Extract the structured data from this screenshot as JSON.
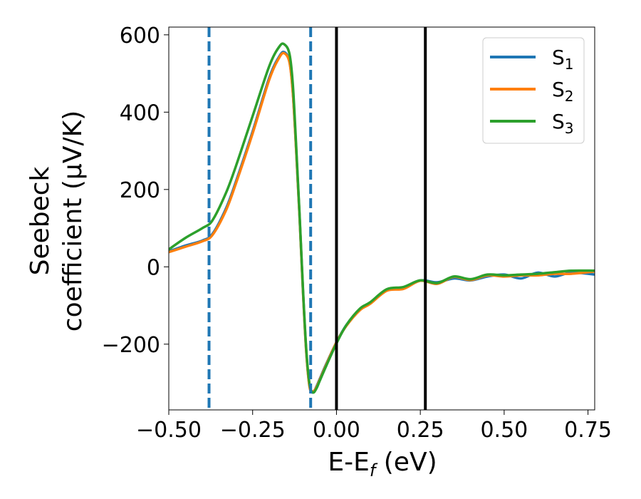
{
  "chart_data": {
    "type": "line",
    "xlabel": "E-E$_f$ (eV)",
    "xlabel_parts": [
      "E-E",
      "f",
      " (eV)"
    ],
    "ylabel_line1": "Seebeck",
    "ylabel_line2": "coefficient  (μV/K)",
    "xlim": [
      -0.5,
      0.77
    ],
    "ylim": [
      -370,
      620
    ],
    "x_ticks": [
      -0.5,
      -0.25,
      0.0,
      0.25,
      0.5,
      0.75
    ],
    "x_tick_labels": [
      "−0.50",
      "−0.25",
      "0.00",
      "0.25",
      "0.50",
      "0.75"
    ],
    "y_ticks": [
      -200,
      0,
      200,
      400,
      600
    ],
    "y_tick_labels": [
      "−200",
      "0",
      "200",
      "400",
      "600"
    ],
    "legend_position": "top-right",
    "grid": false,
    "vertical_lines": [
      {
        "x": -0.38,
        "style": "dashed",
        "color": "#1f77b4"
      },
      {
        "x": -0.077,
        "style": "dashed",
        "color": "#1f77b4"
      },
      {
        "x": 0.0,
        "style": "solid",
        "color": "#000000"
      },
      {
        "x": 0.265,
        "style": "solid",
        "color": "#000000"
      }
    ],
    "series": [
      {
        "name": "S1",
        "label_base": "S",
        "label_sub": "1",
        "color": "#1f77b4",
        "x": [
          -0.5,
          -0.45,
          -0.4,
          -0.37,
          -0.33,
          -0.3,
          -0.25,
          -0.2,
          -0.17,
          -0.155,
          -0.14,
          -0.13,
          -0.12,
          -0.11,
          -0.1,
          -0.09,
          -0.08,
          -0.07,
          -0.06,
          -0.05,
          -0.03,
          0.0,
          0.03,
          0.07,
          0.1,
          0.15,
          0.2,
          0.25,
          0.3,
          0.35,
          0.4,
          0.45,
          0.5,
          0.55,
          0.6,
          0.65,
          0.7,
          0.77
        ],
        "y": [
          40,
          55,
          68,
          85,
          150,
          220,
          350,
          490,
          545,
          555,
          530,
          450,
          300,
          130,
          -60,
          -220,
          -310,
          -325,
          -310,
          -290,
          -250,
          -195,
          -150,
          -110,
          -95,
          -60,
          -55,
          -35,
          -40,
          -30,
          -35,
          -25,
          -20,
          -30,
          -15,
          -25,
          -15,
          -20
        ]
      },
      {
        "name": "S2",
        "label_base": "S",
        "label_sub": "2",
        "color": "#ff7f0e",
        "x": [
          -0.5,
          -0.45,
          -0.4,
          -0.37,
          -0.33,
          -0.3,
          -0.25,
          -0.2,
          -0.17,
          -0.155,
          -0.14,
          -0.13,
          -0.12,
          -0.11,
          -0.1,
          -0.09,
          -0.08,
          -0.07,
          -0.06,
          -0.05,
          -0.03,
          0.0,
          0.03,
          0.07,
          0.1,
          0.15,
          0.2,
          0.25,
          0.3,
          0.35,
          0.4,
          0.45,
          0.5,
          0.55,
          0.6,
          0.65,
          0.7,
          0.77
        ],
        "y": [
          38,
          52,
          66,
          82,
          145,
          215,
          345,
          485,
          542,
          552,
          528,
          448,
          298,
          128,
          -62,
          -222,
          -312,
          -322,
          -312,
          -292,
          -252,
          -195,
          -152,
          -112,
          -96,
          -62,
          -57,
          -36,
          -44,
          -26,
          -34,
          -22,
          -25,
          -22,
          -22,
          -18,
          -18,
          -12
        ]
      },
      {
        "name": "S3",
        "label_base": "S",
        "label_sub": "3",
        "color": "#2ca02c",
        "x": [
          -0.5,
          -0.45,
          -0.4,
          -0.37,
          -0.33,
          -0.3,
          -0.25,
          -0.2,
          -0.17,
          -0.155,
          -0.14,
          -0.13,
          -0.12,
          -0.11,
          -0.1,
          -0.09,
          -0.08,
          -0.07,
          -0.06,
          -0.05,
          -0.03,
          0.0,
          0.03,
          0.07,
          0.1,
          0.15,
          0.2,
          0.25,
          0.3,
          0.35,
          0.4,
          0.45,
          0.5,
          0.55,
          0.6,
          0.65,
          0.7,
          0.77
        ],
        "y": [
          45,
          75,
          100,
          120,
          190,
          260,
          390,
          520,
          570,
          575,
          550,
          470,
          310,
          135,
          -55,
          -215,
          -305,
          -325,
          -315,
          -295,
          -255,
          -198,
          -150,
          -108,
          -92,
          -58,
          -52,
          -35,
          -42,
          -25,
          -32,
          -20,
          -22,
          -20,
          -18,
          -14,
          -10,
          -10
        ]
      }
    ]
  }
}
